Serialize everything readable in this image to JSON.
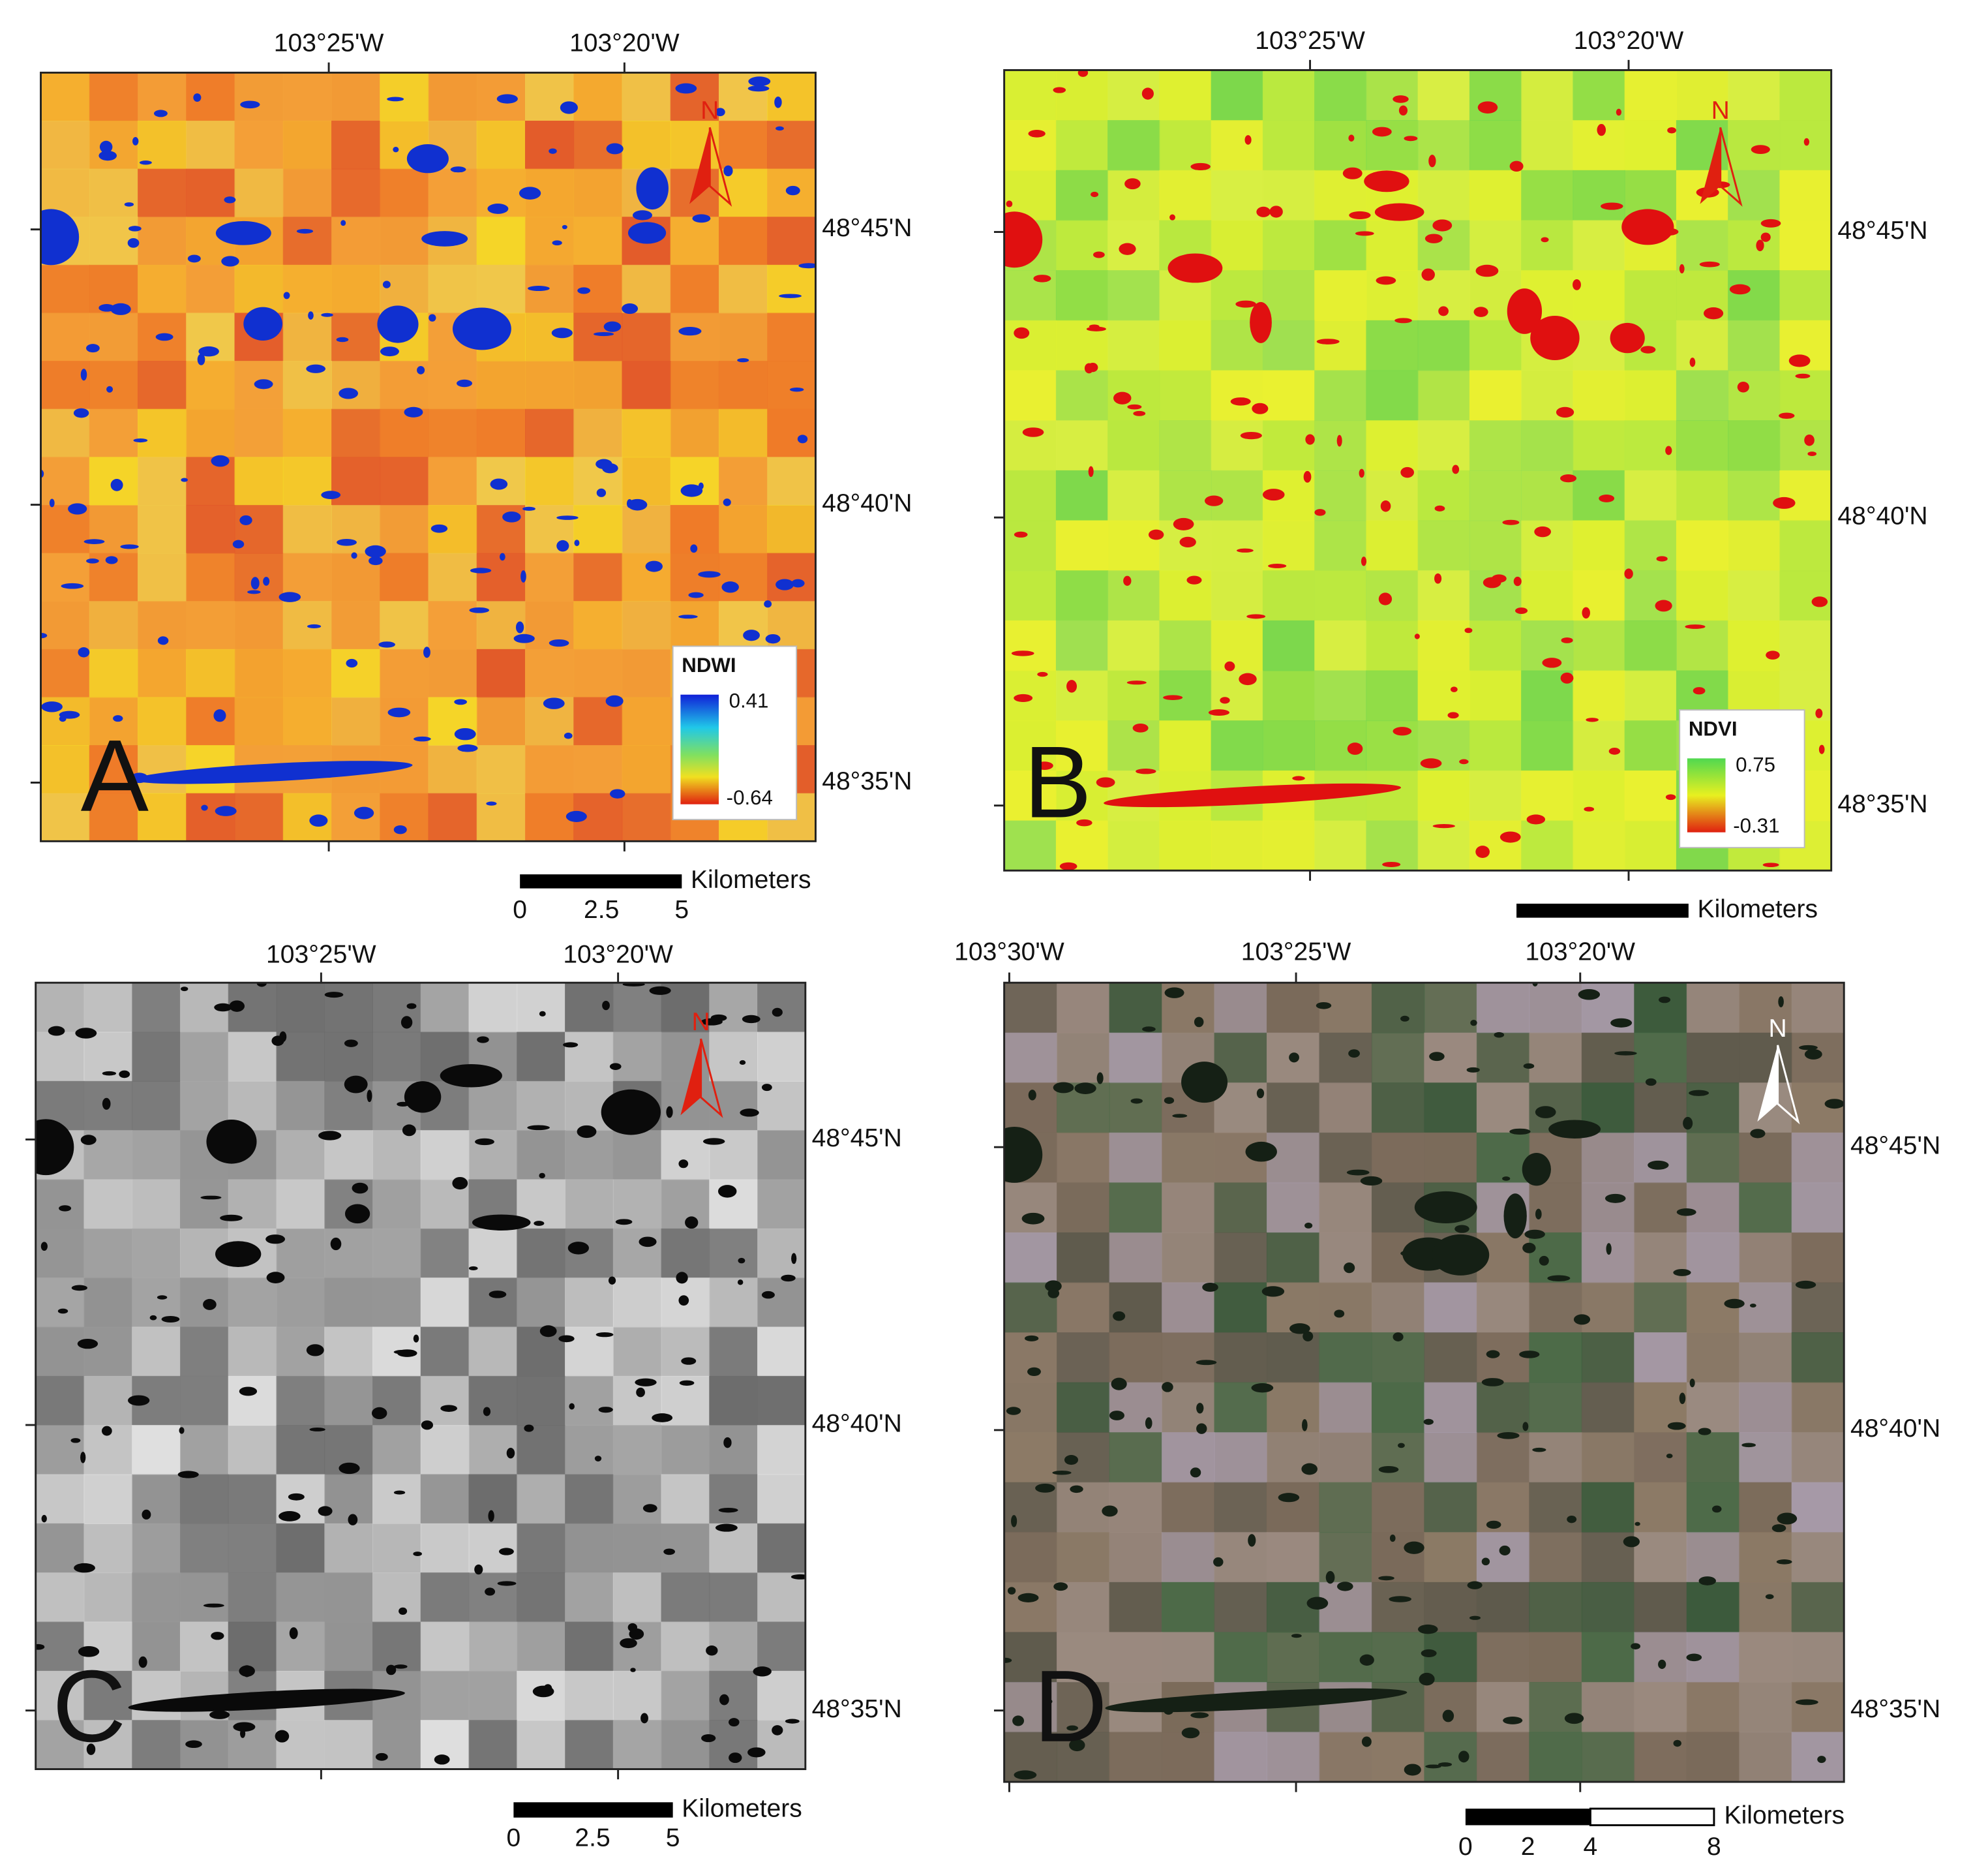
{
  "panels": [
    {
      "letter": "A",
      "lon_labels": [
        "103°25'W",
        "103°20'W"
      ],
      "lat_labels": [
        "48°45'N",
        "48°40'N",
        "48°35'N"
      ],
      "north": "N",
      "legend": {
        "title": "NDWI",
        "max": 0.41,
        "min": -0.64
      },
      "scale": {
        "unit": "Kilometers",
        "ticks": [
          0,
          2.5,
          5
        ]
      }
    },
    {
      "letter": "B",
      "lon_labels": [
        "103°25'W",
        "103°20'W"
      ],
      "lat_labels": [
        "48°45'N",
        "48°40'N",
        "48°35'N"
      ],
      "north": "N",
      "legend": {
        "title": "NDVI",
        "max": 0.75,
        "min": -0.31
      },
      "scale": {
        "unit": "Kilometers"
      }
    },
    {
      "letter": "C",
      "lon_labels": [
        "103°25'W",
        "103°20'W"
      ],
      "lat_labels": [
        "48°45'N",
        "48°40'N",
        "48°35'N"
      ],
      "north": "N",
      "scale": {
        "unit": "Kilometers",
        "ticks": [
          0,
          2.5,
          5
        ]
      }
    },
    {
      "letter": "D",
      "lon_labels": [
        "103°30'W",
        "103°25'W",
        "103°20'W"
      ],
      "lat_labels": [
        "48°45'N",
        "48°40'N",
        "48°35'N"
      ],
      "north": "N",
      "scale": {
        "unit": "Kilometers",
        "ticks": [
          0,
          2,
          4,
          8
        ]
      }
    }
  ]
}
